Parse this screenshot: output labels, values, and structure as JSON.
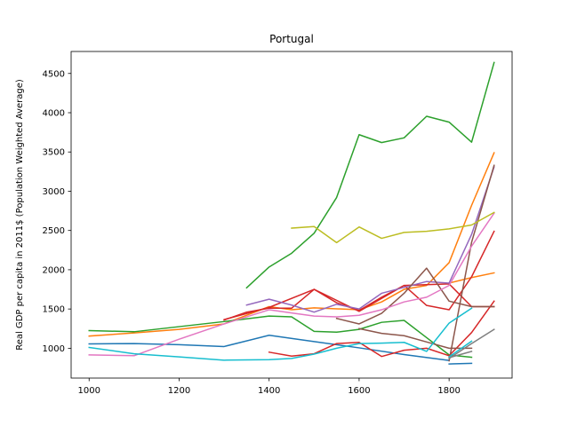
{
  "chart_data": {
    "type": "line",
    "title": "Portugal",
    "xlabel": "",
    "ylabel": "Real GDP per capita in 2011$ (Population Weighted Average)",
    "xlim": [
      960,
      1940
    ],
    "ylim": [
      620,
      4780
    ],
    "x_ticks": [
      1000,
      1200,
      1400,
      1600,
      1800
    ],
    "y_ticks": [
      1000,
      1500,
      2000,
      2500,
      3000,
      3500,
      4000,
      4500
    ],
    "grid": false,
    "legend": "none",
    "series": [
      {
        "color": "#1f77b4",
        "points": [
          [
            1000,
            1055
          ],
          [
            1100,
            1060
          ],
          [
            1200,
            1045
          ],
          [
            1300,
            1022
          ],
          [
            1400,
            1165
          ],
          [
            1500,
            1085
          ],
          [
            1600,
            1005
          ],
          [
            1700,
            920
          ],
          [
            1800,
            845
          ]
        ]
      },
      {
        "color": "#1f77b4",
        "points": [
          [
            1800,
            800
          ],
          [
            1850,
            808
          ]
        ]
      },
      {
        "color": "#ff7f0e",
        "points": [
          [
            1000,
            1155
          ],
          [
            1100,
            1195
          ],
          [
            1200,
            1240
          ],
          [
            1300,
            1310
          ],
          [
            1400,
            1530
          ],
          [
            1450,
            1490
          ],
          [
            1500,
            1515
          ],
          [
            1600,
            1490
          ],
          [
            1650,
            1590
          ],
          [
            1700,
            1750
          ],
          [
            1750,
            1800
          ],
          [
            1800,
            2090
          ],
          [
            1850,
            2820
          ],
          [
            1900,
            3490
          ]
        ]
      },
      {
        "color": "#ff7f0e",
        "points": [
          [
            1800,
            1830
          ],
          [
            1850,
            1900
          ],
          [
            1900,
            1960
          ]
        ]
      },
      {
        "color": "#2ca02c",
        "points": [
          [
            1350,
            1770
          ],
          [
            1400,
            2035
          ],
          [
            1450,
            2210
          ],
          [
            1500,
            2465
          ],
          [
            1550,
            2920
          ],
          [
            1600,
            3720
          ],
          [
            1650,
            3620
          ],
          [
            1700,
            3680
          ],
          [
            1750,
            3955
          ],
          [
            1800,
            3880
          ],
          [
            1850,
            3625
          ],
          [
            1900,
            4640
          ]
        ]
      },
      {
        "color": "#2ca02c",
        "points": [
          [
            1000,
            1225
          ],
          [
            1100,
            1210
          ],
          [
            1200,
            1275
          ],
          [
            1300,
            1340
          ],
          [
            1400,
            1410
          ],
          [
            1450,
            1400
          ],
          [
            1500,
            1215
          ],
          [
            1550,
            1205
          ],
          [
            1600,
            1240
          ],
          [
            1650,
            1330
          ],
          [
            1700,
            1355
          ],
          [
            1750,
            1135
          ],
          [
            1800,
            915
          ],
          [
            1850,
            885
          ]
        ]
      },
      {
        "color": "#d62728",
        "points": [
          [
            1300,
            1360
          ],
          [
            1350,
            1460
          ],
          [
            1400,
            1510
          ],
          [
            1450,
            1510
          ],
          [
            1500,
            1750
          ],
          [
            1550,
            1580
          ],
          [
            1600,
            1480
          ],
          [
            1650,
            1650
          ],
          [
            1700,
            1800
          ],
          [
            1750,
            1545
          ],
          [
            1800,
            1490
          ],
          [
            1850,
            1910
          ],
          [
            1900,
            2490
          ]
        ]
      },
      {
        "color": "#d62728",
        "points": [
          [
            1400,
            950
          ],
          [
            1450,
            900
          ],
          [
            1500,
            930
          ],
          [
            1550,
            1060
          ],
          [
            1600,
            1075
          ],
          [
            1650,
            895
          ],
          [
            1700,
            975
          ],
          [
            1750,
            1000
          ],
          [
            1800,
            905
          ],
          [
            1850,
            1200
          ],
          [
            1900,
            1600
          ]
        ]
      },
      {
        "color": "#d62728",
        "points": [
          [
            1300,
            1365
          ],
          [
            1400,
            1520
          ],
          [
            1500,
            1750
          ],
          [
            1600,
            1470
          ],
          [
            1700,
            1800
          ],
          [
            1800,
            1820
          ],
          [
            1850,
            1530
          ],
          [
            1900,
            1530
          ]
        ]
      },
      {
        "color": "#9467bd",
        "points": [
          [
            1350,
            1550
          ],
          [
            1400,
            1625
          ],
          [
            1450,
            1550
          ],
          [
            1500,
            1460
          ],
          [
            1550,
            1560
          ],
          [
            1600,
            1500
          ],
          [
            1650,
            1700
          ],
          [
            1700,
            1775
          ],
          [
            1750,
            1850
          ],
          [
            1800,
            1830
          ],
          [
            1850,
            2450
          ],
          [
            1900,
            3310
          ]
        ]
      },
      {
        "color": "#8c564b",
        "points": [
          [
            1550,
            1380
          ],
          [
            1600,
            1310
          ],
          [
            1650,
            1445
          ],
          [
            1700,
            1700
          ],
          [
            1750,
            2020
          ],
          [
            1800,
            1600
          ],
          [
            1850,
            1530
          ],
          [
            1900,
            1530
          ]
        ]
      },
      {
        "color": "#8c564b",
        "points": [
          [
            1600,
            1250
          ],
          [
            1650,
            1190
          ],
          [
            1700,
            1160
          ],
          [
            1750,
            1080
          ],
          [
            1800,
            1000
          ],
          [
            1850,
            1000
          ]
        ]
      },
      {
        "color": "#8c564b",
        "points": [
          [
            1800,
            840
          ],
          [
            1850,
            2350
          ],
          [
            1900,
            3330
          ]
        ]
      },
      {
        "color": "#e377c2",
        "points": [
          [
            1000,
            915
          ],
          [
            1100,
            905
          ],
          [
            1200,
            1115
          ],
          [
            1300,
            1310
          ],
          [
            1400,
            1490
          ],
          [
            1450,
            1450
          ],
          [
            1500,
            1410
          ],
          [
            1550,
            1400
          ],
          [
            1600,
            1420
          ],
          [
            1650,
            1490
          ],
          [
            1700,
            1590
          ],
          [
            1750,
            1650
          ],
          [
            1800,
            1800
          ],
          [
            1850,
            2300
          ],
          [
            1900,
            2720
          ]
        ]
      },
      {
        "color": "#7f7f7f",
        "points": [
          [
            1800,
            870
          ],
          [
            1850,
            1060
          ],
          [
            1900,
            1240
          ]
        ]
      },
      {
        "color": "#7f7f7f",
        "points": [
          [
            1800,
            880
          ],
          [
            1850,
            960
          ]
        ]
      },
      {
        "color": "#bcbd22",
        "points": [
          [
            1450,
            2530
          ],
          [
            1500,
            2550
          ],
          [
            1550,
            2345
          ],
          [
            1600,
            2545
          ],
          [
            1650,
            2400
          ],
          [
            1700,
            2475
          ],
          [
            1750,
            2490
          ],
          [
            1800,
            2520
          ],
          [
            1850,
            2570
          ],
          [
            1900,
            2730
          ]
        ]
      },
      {
        "color": "#17becf",
        "points": [
          [
            1000,
            1010
          ],
          [
            1100,
            930
          ],
          [
            1200,
            890
          ],
          [
            1300,
            848
          ],
          [
            1400,
            855
          ],
          [
            1450,
            870
          ],
          [
            1500,
            925
          ],
          [
            1550,
            1000
          ],
          [
            1600,
            1060
          ],
          [
            1650,
            1065
          ],
          [
            1700,
            1075
          ],
          [
            1750,
            960
          ],
          [
            1800,
            1320
          ],
          [
            1850,
            1510
          ]
        ]
      },
      {
        "color": "#17becf",
        "points": [
          [
            1800,
            890
          ],
          [
            1850,
            1090
          ]
        ]
      }
    ]
  }
}
